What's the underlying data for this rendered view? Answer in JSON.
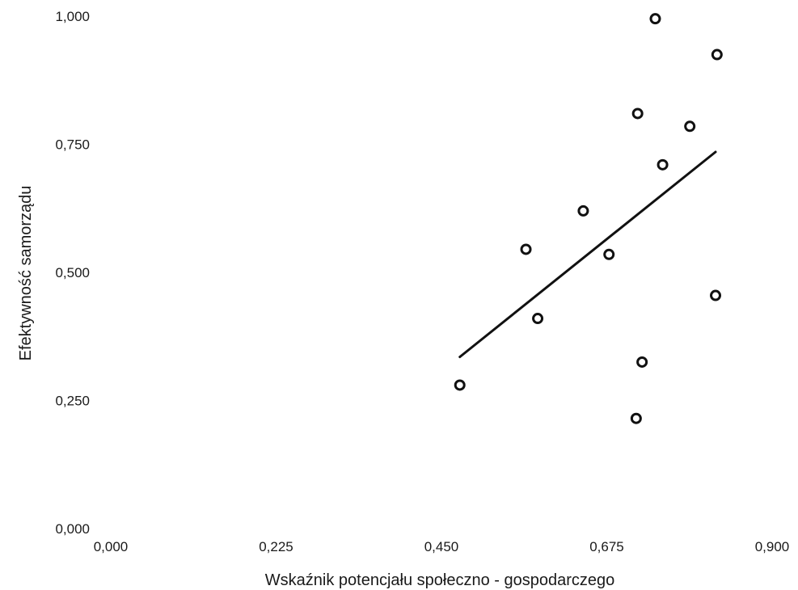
{
  "chart_data": {
    "type": "scatter",
    "xlabel": "Wskaźnik potencjału społeczno - gospodarczego",
    "ylabel": "Efektywność samorządu",
    "xlim": [
      0,
      0.9
    ],
    "ylim": [
      0,
      1
    ],
    "x_ticks": [
      "0,000",
      "0,225",
      "0,450",
      "0,675",
      "0,900"
    ],
    "x_tick_values": [
      0,
      0.225,
      0.45,
      0.675,
      0.9
    ],
    "y_ticks": [
      "0,000",
      "0,250",
      "0,500",
      "0,750",
      "1,000"
    ],
    "y_tick_values": [
      0,
      0.25,
      0.5,
      0.75,
      1.0
    ],
    "grid": false,
    "points": [
      {
        "x": 0.475,
        "y": 0.28
      },
      {
        "x": 0.565,
        "y": 0.545
      },
      {
        "x": 0.581,
        "y": 0.41
      },
      {
        "x": 0.643,
        "y": 0.62
      },
      {
        "x": 0.678,
        "y": 0.535
      },
      {
        "x": 0.717,
        "y": 0.81
      },
      {
        "x": 0.715,
        "y": 0.215
      },
      {
        "x": 0.723,
        "y": 0.325
      },
      {
        "x": 0.741,
        "y": 0.995
      },
      {
        "x": 0.751,
        "y": 0.71
      },
      {
        "x": 0.788,
        "y": 0.785
      },
      {
        "x": 0.825,
        "y": 0.925
      },
      {
        "x": 0.823,
        "y": 0.455
      }
    ],
    "trendline": {
      "x": [
        0.475,
        0.823
      ],
      "y": [
        0.335,
        0.735
      ]
    }
  }
}
